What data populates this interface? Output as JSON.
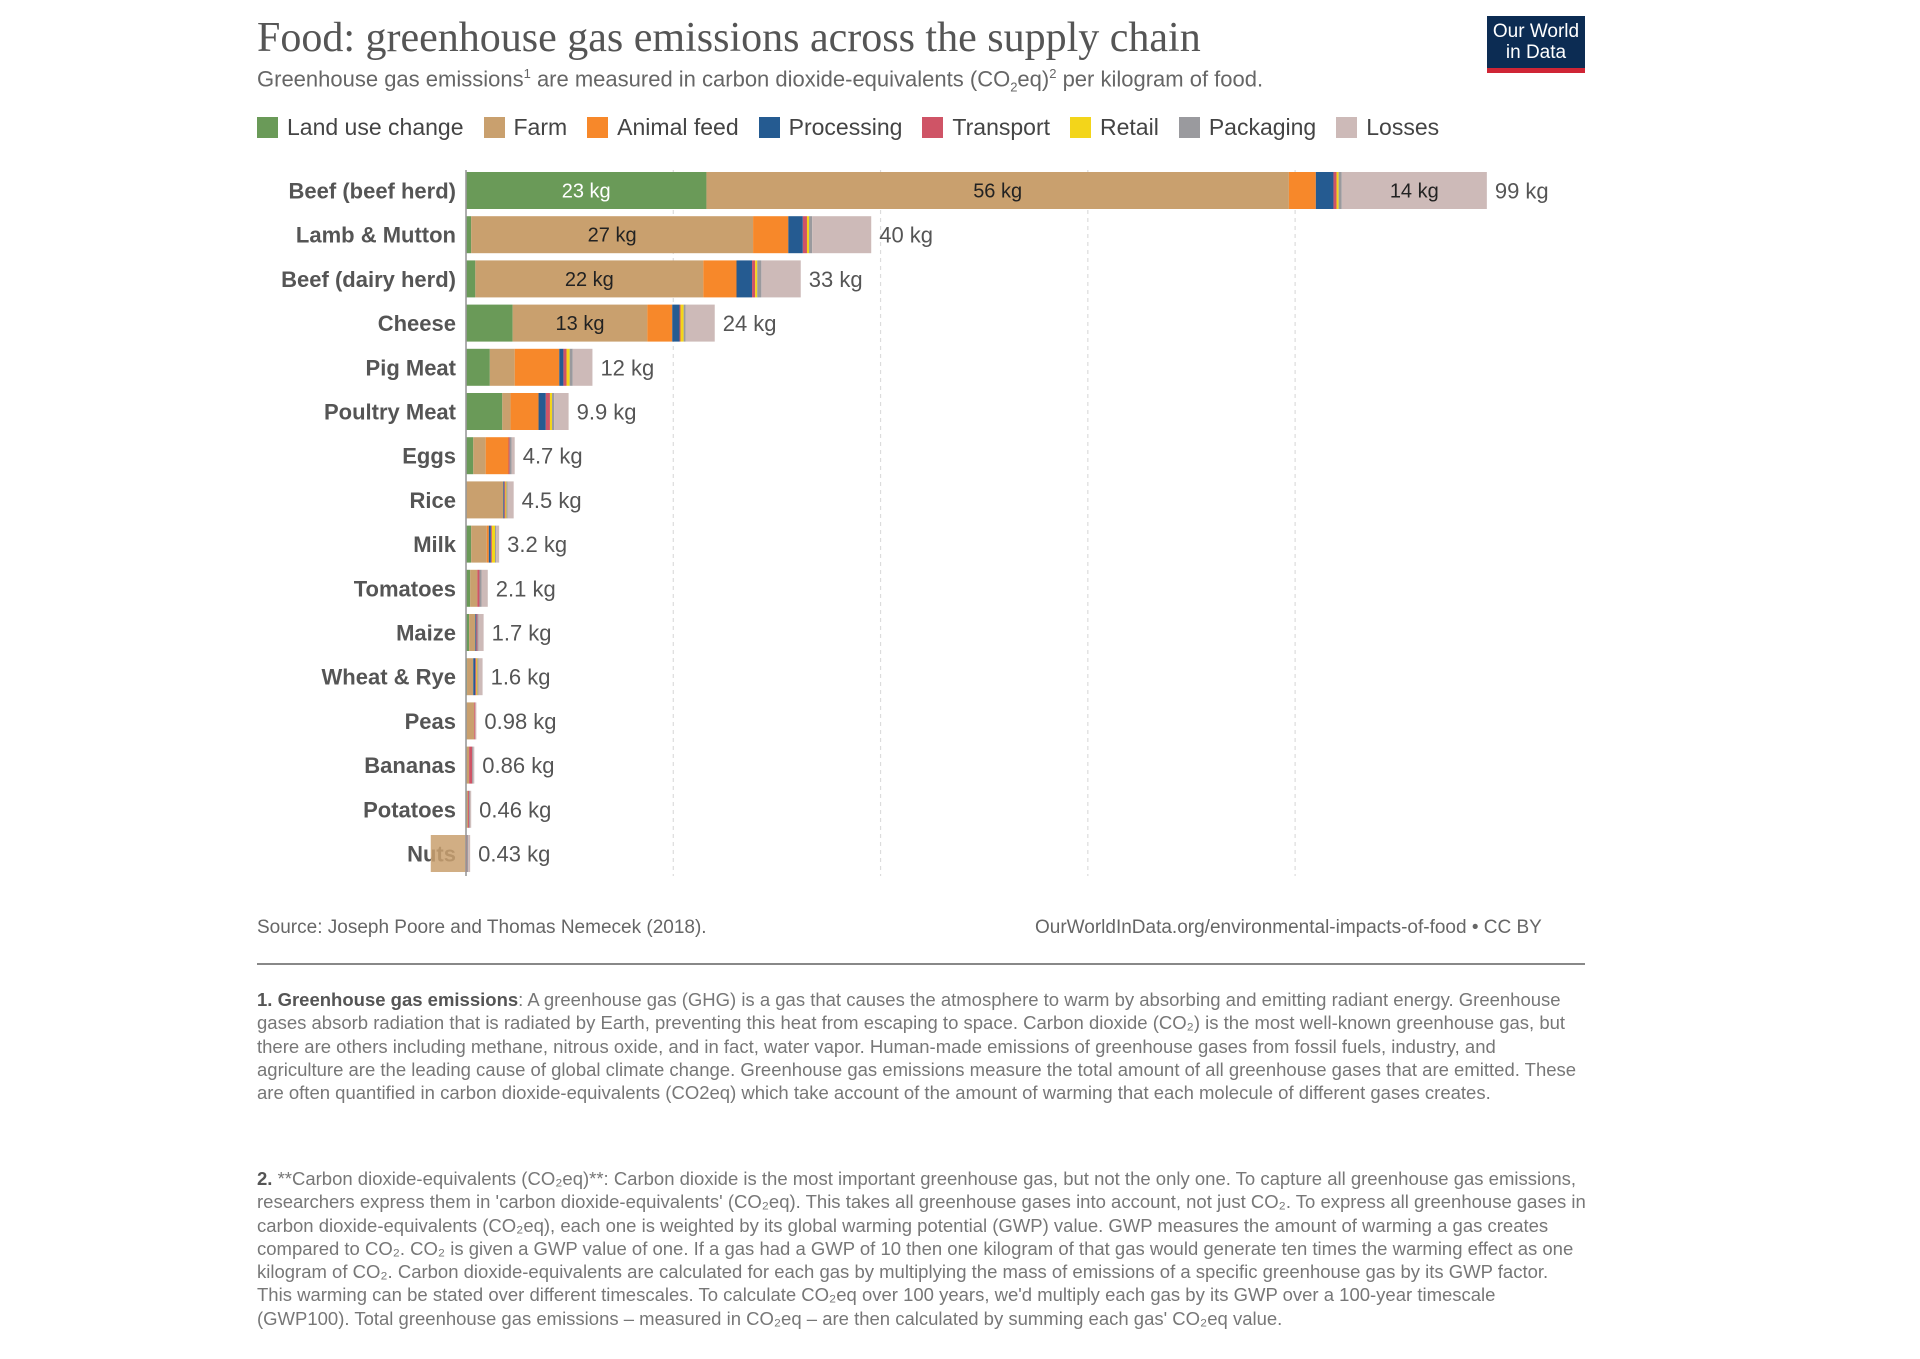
{
  "header": {
    "title": "Food: greenhouse gas emissions across the supply chain",
    "subtitle_a": "Greenhouse gas emissions",
    "subtitle_sup1": "1",
    "subtitle_b": " are measured in carbon dioxide-equivalents (CO",
    "subtitle_sub": "2",
    "subtitle_c": "eq)",
    "subtitle_sup2": "2",
    "subtitle_d": " per kilogram of food."
  },
  "logo": {
    "line1": "Our World",
    "line2": "in Data"
  },
  "colors": {
    "land_use_change": "#6a9a58",
    "farm": "#c9a06e",
    "animal_feed": "#f7882a",
    "processing": "#255b91",
    "transport": "#cf5466",
    "retail": "#f3d51a",
    "packaging": "#9a9a9e",
    "losses": "#cdbab8"
  },
  "chart_data": {
    "type": "bar",
    "orientation": "horizontal-stacked",
    "title": "Food: greenhouse gas emissions across the supply chain",
    "unit": "kg CO2eq per kg of food",
    "xlim": [
      0,
      99
    ],
    "grid": true,
    "legend_position": "top",
    "series_names": [
      "Land use change",
      "Farm",
      "Animal feed",
      "Processing",
      "Transport",
      "Retail",
      "Packaging",
      "Losses"
    ],
    "categories": [
      "Beef (beef herd)",
      "Lamb & Mutton",
      "Beef (dairy herd)",
      "Cheese",
      "Pig Meat",
      "Poultry Meat",
      "Eggs",
      "Rice",
      "Milk",
      "Tomatoes",
      "Maize",
      "Wheat & Rye",
      "Peas",
      "Bananas",
      "Potatoes",
      "Nuts"
    ],
    "series": [
      {
        "name": "Land use change",
        "values": [
          23.2,
          0.5,
          0.9,
          4.5,
          2.3,
          3.5,
          0.7,
          0,
          0.5,
          0.4,
          0.3,
          0.1,
          0,
          0,
          0,
          0
        ]
      },
      {
        "name": "Farm",
        "values": [
          56.2,
          27.2,
          22.0,
          13.0,
          2.4,
          0.8,
          1.2,
          3.6,
          1.5,
          0.7,
          0.6,
          0.6,
          0.8,
          0.3,
          0.2,
          -3.4
        ]
      },
      {
        "name": "Animal feed",
        "values": [
          2.6,
          3.4,
          3.2,
          2.4,
          4.3,
          2.7,
          2.2,
          0,
          0.2,
          0,
          0,
          0,
          0,
          0,
          0,
          0
        ]
      },
      {
        "name": "Processing",
        "values": [
          1.7,
          1.4,
          1.5,
          0.7,
          0.4,
          0.7,
          0,
          0.1,
          0.2,
          0,
          0.1,
          0.2,
          0,
          0,
          0,
          0
        ]
      },
      {
        "name": "Transport",
        "values": [
          0.3,
          0.4,
          0.3,
          0.1,
          0.3,
          0.4,
          0.1,
          0.1,
          0.1,
          0.2,
          0.1,
          0.1,
          0.1,
          0.3,
          0.1,
          0.1
        ]
      },
      {
        "name": "Retail",
        "values": [
          0.2,
          0.2,
          0.2,
          0.3,
          0.3,
          0.2,
          0,
          0.1,
          0.3,
          0,
          0,
          0.1,
          0,
          0,
          0,
          0
        ]
      },
      {
        "name": "Packaging",
        "values": [
          0.3,
          0.3,
          0.4,
          0.2,
          0.3,
          0.2,
          0.2,
          0.1,
          0.1,
          0.2,
          0.1,
          0.1,
          0,
          0.1,
          0.1,
          0.1
        ]
      },
      {
        "name": "Losses",
        "values": [
          14.0,
          5.7,
          3.8,
          2.8,
          1.9,
          1.4,
          0.3,
          0.6,
          0.3,
          0.6,
          0.5,
          0.4,
          0.1,
          0.1,
          0.1,
          0.2
        ]
      }
    ],
    "segment_labels": [
      {
        "category": "Beef (beef herd)",
        "series": "Land use change",
        "text": "23 kg"
      },
      {
        "category": "Beef (beef herd)",
        "series": "Farm",
        "text": "56 kg"
      },
      {
        "category": "Beef (beef herd)",
        "series": "Losses",
        "text": "14 kg"
      },
      {
        "category": "Lamb & Mutton",
        "series": "Farm",
        "text": "27 kg"
      },
      {
        "category": "Beef (dairy herd)",
        "series": "Farm",
        "text": "22 kg"
      },
      {
        "category": "Cheese",
        "series": "Farm",
        "text": "13 kg"
      }
    ],
    "totals": [
      99.48,
      39.72,
      33.3,
      23.88,
      12.31,
      9.87,
      4.67,
      4.45,
      3.15,
      2.09,
      1.7,
      1.57,
      0.98,
      0.86,
      0.46,
      0.43
    ],
    "total_labels": [
      "99 kg",
      "40 kg",
      "33 kg",
      "24 kg",
      "12 kg",
      "9.9 kg",
      "4.7 kg",
      "4.5 kg",
      "3.2 kg",
      "2.1 kg",
      "1.7 kg",
      "1.6 kg",
      "0.98 kg",
      "0.86 kg",
      "0.46 kg",
      "0.43 kg"
    ]
  },
  "footer": {
    "source": "Source: Joseph Poore and Thomas Nemecek (2018).",
    "url": "OurWorldInData.org/environmental-impacts-of-food • CC BY"
  },
  "notes": {
    "n1_num": "1.",
    "n1_term": "Greenhouse gas emissions",
    "n1_text": ": A greenhouse gas (GHG) is a gas that causes the atmosphere to warm by absorbing and emitting radiant energy. Greenhouse gases absorb radiation that is radiated by Earth, preventing this heat from escaping to space. Carbon dioxide (CO₂) is the most well-known greenhouse gas, but there are others including methane, nitrous oxide, and in fact, water vapor. Human-made emissions of greenhouse gases from fossil fuels, industry, and agriculture are the leading cause of global climate change. Greenhouse gas emissions measure the total amount of all greenhouse gases that are emitted. These are often quantified in carbon dioxide-equivalents (CO2eq) which take account of the amount of warming that each molecule of different gases creates.",
    "n2_num": "2.",
    "n2_text": " **Carbon dioxide-equivalents (CO₂eq)**: Carbon dioxide is the most important greenhouse gas, but not the only one. To capture all greenhouse gas emissions, researchers express them in 'carbon dioxide-equivalents' (CO₂eq). This takes all greenhouse gases into account, not just CO₂. To express all greenhouse gases in carbon dioxide-equivalents (CO₂eq), each one is weighted by its global warming potential (GWP) value. GWP measures the amount of warming a gas creates compared to CO₂. CO₂ is given a GWP value of one. If a gas had a GWP of 10 then one kilogram of that gas would generate ten times the warming effect as one kilogram of CO₂. Carbon dioxide-equivalents are calculated for each gas by multiplying the mass of emissions of a specific greenhouse gas by its GWP factor. This warming can be stated over different timescales. To calculate CO₂eq over 100 years, we'd multiply each gas by its GWP over a 100-year timescale (GWP100). Total greenhouse gas emissions – measured in CO₂eq – are then calculated by summing each gas' CO₂eq value."
  }
}
